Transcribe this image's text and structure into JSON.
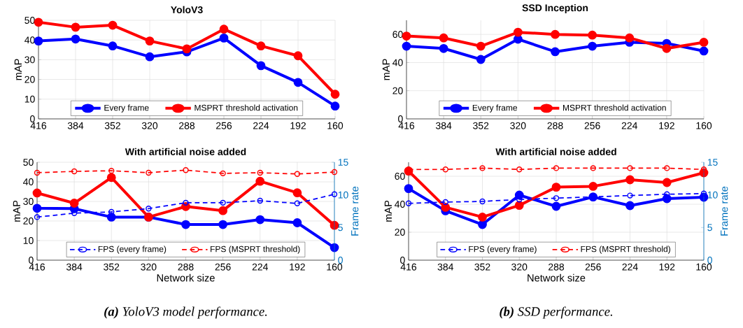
{
  "chart_data": [
    {
      "type": "line",
      "title": "YoloV3",
      "ylabel": "mAP",
      "x": [
        416,
        384,
        352,
        320,
        288,
        256,
        224,
        192,
        160
      ],
      "xlim": [
        416,
        160
      ],
      "xticks": [
        416,
        384,
        352,
        320,
        288,
        256,
        224,
        192,
        160
      ],
      "ylim": [
        0,
        50
      ],
      "yticks": [
        0,
        10,
        20,
        30,
        40,
        50
      ],
      "grid": true,
      "legend": "bottom",
      "marker": "circle",
      "line_style": "solid",
      "series": [
        {
          "name": "Every frame",
          "color": "#0000ff",
          "values": [
            39.5,
            40.5,
            37,
            31.5,
            34,
            41,
            27,
            18.5,
            6.5
          ]
        },
        {
          "name": "MSPRT threshold activation",
          "color": "#ff0000",
          "values": [
            49,
            46.5,
            47.5,
            39.5,
            35.5,
            45.5,
            37,
            32,
            12.5
          ]
        }
      ]
    },
    {
      "type": "line",
      "title": "SSD Inception",
      "ylabel": "mAP",
      "x": [
        416,
        384,
        352,
        320,
        288,
        256,
        224,
        192,
        160
      ],
      "xlim": [
        416,
        160
      ],
      "xticks": [
        416,
        384,
        352,
        320,
        288,
        256,
        224,
        192,
        160
      ],
      "ylim": [
        0,
        70
      ],
      "yticks": [
        0,
        20,
        40,
        60
      ],
      "grid": true,
      "legend": "bottom",
      "marker": "circle",
      "line_style": "solid",
      "series": [
        {
          "name": "Every frame",
          "color": "#0000ff",
          "values": [
            51.6,
            50,
            42.2,
            56.6,
            47.7,
            51.6,
            54.4,
            53.6,
            48.2
          ]
        },
        {
          "name": "MSPRT threshold activation",
          "color": "#ff0000",
          "values": [
            58.8,
            57.5,
            51.6,
            61.5,
            60,
            59.5,
            57.5,
            50,
            54.4
          ]
        }
      ]
    },
    {
      "type": "line",
      "title": "With artificial noise added",
      "xlabel": "Network size",
      "ylabel": "mAP",
      "y2label": "Frame rate",
      "x": [
        416,
        384,
        352,
        320,
        288,
        256,
        224,
        192,
        160
      ],
      "xlim": [
        416,
        160
      ],
      "xticks": [
        416,
        384,
        352,
        320,
        288,
        256,
        224,
        192,
        160
      ],
      "ylim": [
        0,
        50
      ],
      "yticks": [
        0,
        10,
        20,
        30,
        40,
        50
      ],
      "y2lim": [
        0,
        15
      ],
      "y2ticks": [
        0,
        5,
        10,
        15
      ],
      "grid": true,
      "legend": "bottom",
      "marker": "circle",
      "annotations": [
        "**(a)** YoloV3 model performance."
      ],
      "series": [
        {
          "color": "#0000ff",
          "line_style": "solid",
          "values": [
            26.5,
            26.3,
            22,
            22,
            18.2,
            18.2,
            20.7,
            19.1,
            6.4
          ]
        },
        {
          "color": "#ff0000",
          "line_style": "solid",
          "values": [
            34.3,
            29.1,
            42.2,
            22,
            27.4,
            25.3,
            40.3,
            34.4,
            17.8
          ]
        },
        {
          "name": "FPS (every frame)",
          "color": "#0000ff",
          "line_style": "dashed",
          "axis": "y2",
          "values": [
            6.6,
            7.2,
            7.4,
            7.9,
            8.8,
            8.8,
            9.1,
            8.7,
            10.1
          ]
        },
        {
          "name": "FPS (MSPRT threshold)",
          "color": "#ff0000",
          "line_style": "dashed",
          "axis": "y2",
          "values": [
            13.4,
            13.6,
            13.7,
            13.4,
            13.8,
            13.3,
            13.4,
            13.2,
            13.5
          ]
        }
      ]
    },
    {
      "type": "line",
      "title": "With artificial noise added",
      "xlabel": "Network size",
      "ylabel": "mAP",
      "y2label": "Frame rate",
      "x": [
        416,
        384,
        352,
        320,
        288,
        256,
        224,
        192,
        160
      ],
      "xlim": [
        416,
        160
      ],
      "xticks": [
        416,
        384,
        352,
        320,
        288,
        256,
        224,
        192,
        160
      ],
      "ylim": [
        0,
        70
      ],
      "yticks": [
        0,
        20,
        40,
        60
      ],
      "y2lim": [
        0,
        15
      ],
      "y2ticks": [
        0,
        5,
        10,
        15
      ],
      "grid": true,
      "legend": "bottom",
      "marker": "circle",
      "annotations": [
        "**(b)** SSD performance."
      ],
      "series": [
        {
          "color": "#0000ff",
          "line_style": "solid",
          "values": [
            51.2,
            35.3,
            25.5,
            46.5,
            38.5,
            45.2,
            39,
            44,
            45
          ]
        },
        {
          "color": "#ff0000",
          "line_style": "solid",
          "values": [
            63.7,
            37.8,
            30.8,
            39.2,
            52.2,
            52.8,
            57.5,
            55.5,
            62.5
          ]
        },
        {
          "name": "FPS (every frame)",
          "color": "#0000ff",
          "line_style": "dashed",
          "axis": "y2",
          "values": [
            8.7,
            8.9,
            9.0,
            9.3,
            9.5,
            9.7,
            9.9,
            10.1,
            10.2
          ]
        },
        {
          "name": "FPS (MSPRT threshold)",
          "color": "#ff0000",
          "line_style": "dashed",
          "axis": "y2",
          "values": [
            13.9,
            13.9,
            14.1,
            13.9,
            14.1,
            14.1,
            14.1,
            14.1,
            13.9
          ]
        }
      ]
    }
  ]
}
